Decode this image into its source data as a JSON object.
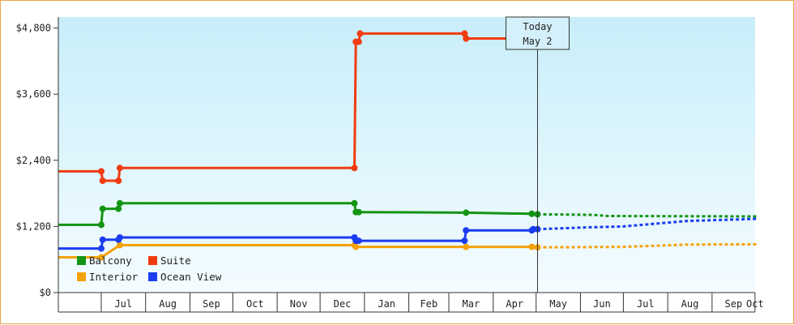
{
  "chart_data": {
    "type": "line",
    "title": "",
    "xlabel": "",
    "ylabel": "",
    "x_range": [
      "2014-06-01",
      "2015-10-31"
    ],
    "ylim": [
      0,
      5000
    ],
    "y_ticks": [
      0,
      1200,
      2400,
      3600,
      4800
    ],
    "y_tick_labels": [
      "$0",
      "$1,200",
      "$2,400",
      "$3,600",
      "$4,800"
    ],
    "month_labels": [
      "Jul",
      "Aug",
      "Sep",
      "Oct",
      "Nov",
      "Dec",
      "Jan",
      "Feb",
      "Mar",
      "Apr",
      "May",
      "Jun",
      "Jul",
      "Aug",
      "Sep",
      "Oct"
    ],
    "grid": false,
    "background": "gradient light cyan to white",
    "legend_position": "bottom-left",
    "today_marker": {
      "date": "2015-05-02",
      "label_line1": "Today",
      "label_line2": "May 2"
    },
    "series": [
      {
        "name": "Balcony",
        "color": "#149414",
        "points": [
          [
            "2014-06-01",
            1230
          ],
          [
            "2014-07-01",
            1230
          ],
          [
            "2014-07-02",
            1520
          ],
          [
            "2014-07-13",
            1520
          ],
          [
            "2014-07-14",
            1620
          ],
          [
            "2014-12-25",
            1620
          ],
          [
            "2014-12-26",
            1460
          ],
          [
            "2014-12-28",
            1460
          ],
          [
            "2015-03-13",
            1450
          ],
          [
            "2015-04-28",
            1430
          ],
          [
            "2015-05-02",
            1420
          ]
        ],
        "forecast": [
          [
            "2015-05-02",
            1420
          ],
          [
            "2015-06-10",
            1410
          ],
          [
            "2015-06-20",
            1390
          ],
          [
            "2015-10-31",
            1380
          ]
        ]
      },
      {
        "name": "Suite",
        "color": "#f03c10",
        "points": [
          [
            "2014-06-01",
            2200
          ],
          [
            "2014-07-01",
            2200
          ],
          [
            "2014-07-02",
            2030
          ],
          [
            "2014-07-13",
            2030
          ],
          [
            "2014-07-14",
            2260
          ],
          [
            "2014-12-25",
            2260
          ],
          [
            "2014-12-26",
            4550
          ],
          [
            "2014-12-28",
            4550
          ],
          [
            "2014-12-29",
            4700
          ],
          [
            "2015-03-12",
            4700
          ],
          [
            "2015-03-13",
            4610
          ],
          [
            "2015-04-27",
            4610
          ]
        ],
        "forecast": []
      },
      {
        "name": "Interior",
        "color": "#f5a10a",
        "points": [
          [
            "2014-06-01",
            640
          ],
          [
            "2014-07-01",
            640
          ],
          [
            "2014-07-14",
            860
          ],
          [
            "2014-12-25",
            860
          ],
          [
            "2014-12-26",
            830
          ],
          [
            "2015-03-13",
            830
          ],
          [
            "2015-04-28",
            830
          ],
          [
            "2015-05-02",
            820
          ]
        ],
        "forecast": [
          [
            "2015-05-02",
            820
          ],
          [
            "2015-07-01",
            830
          ],
          [
            "2015-08-15",
            870
          ],
          [
            "2015-10-31",
            880
          ]
        ]
      },
      {
        "name": "Ocean View",
        "color": "#1a3cf0",
        "points": [
          [
            "2014-06-01",
            800
          ],
          [
            "2014-07-01",
            800
          ],
          [
            "2014-07-02",
            960
          ],
          [
            "2014-07-13",
            960
          ],
          [
            "2014-07-14",
            1000
          ],
          [
            "2014-12-25",
            1000
          ],
          [
            "2014-12-26",
            940
          ],
          [
            "2014-12-28",
            940
          ],
          [
            "2015-03-12",
            940
          ],
          [
            "2015-03-13",
            1130
          ],
          [
            "2015-04-28",
            1130
          ],
          [
            "2015-04-29",
            1150
          ],
          [
            "2015-05-02",
            1150
          ]
        ],
        "forecast": [
          [
            "2015-05-02",
            1150
          ],
          [
            "2015-06-01",
            1180
          ],
          [
            "2015-07-01",
            1200
          ],
          [
            "2015-08-15",
            1300
          ],
          [
            "2015-10-31",
            1360
          ]
        ]
      }
    ]
  }
}
